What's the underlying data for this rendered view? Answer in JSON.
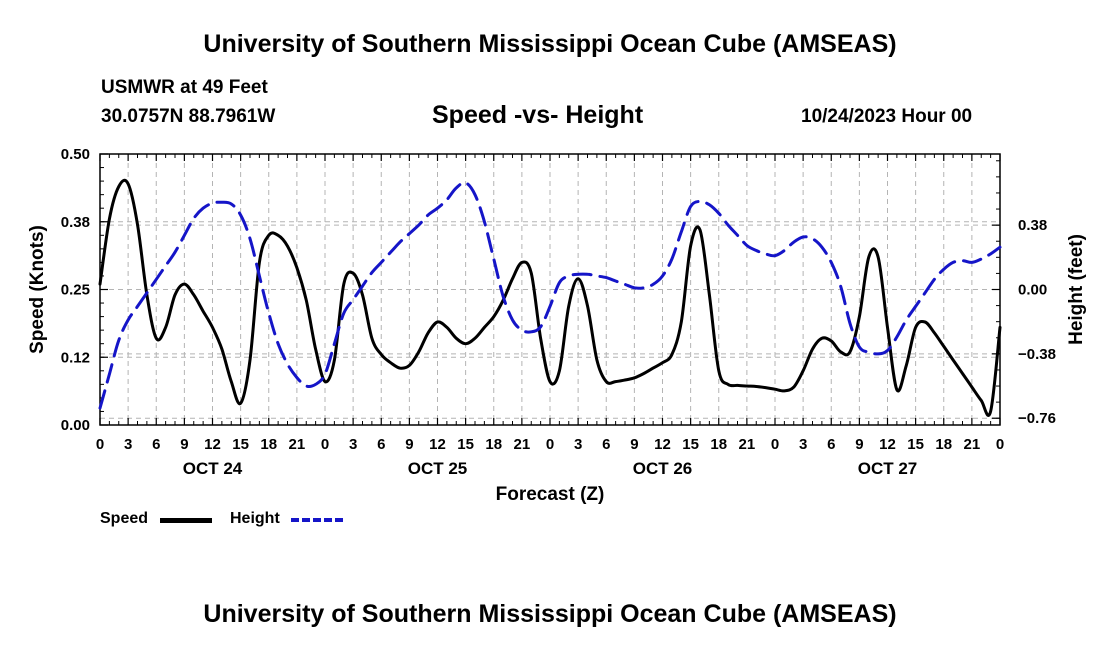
{
  "titles": {
    "top": "University of Southern Mississippi Ocean Cube (AMSEAS)",
    "bottom": "University of Southern Mississippi Ocean Cube (AMSEAS)"
  },
  "station": {
    "name": "USMWR at 49 Feet",
    "coords": "30.0757N  88.7961W"
  },
  "subtitle": "Speed -vs- Height",
  "datetime": "10/24/2023 Hour 00",
  "legend": {
    "speed": "Speed",
    "height": "Height"
  },
  "colors": {
    "speed": "#000000",
    "height": "#1515c8",
    "grid": "#b4b4b4"
  },
  "chart_data": {
    "type": "line",
    "xlabel": "Forecast (Z)",
    "ylabel_left": "Speed (Knots)",
    "ylabel_right": "Height (feet)",
    "x_range": [
      0,
      96
    ],
    "x_tick_hours": [
      0,
      3,
      6,
      9,
      12,
      15,
      18,
      21,
      24,
      27,
      30,
      33,
      36,
      39,
      42,
      45,
      48,
      51,
      54,
      57,
      60,
      63,
      66,
      69,
      72,
      75,
      78,
      81,
      84,
      87,
      90,
      93,
      96
    ],
    "x_tick_labels": [
      "0",
      "3",
      "6",
      "9",
      "12",
      "15",
      "18",
      "21",
      "0",
      "3",
      "6",
      "9",
      "12",
      "15",
      "18",
      "21",
      "0",
      "3",
      "6",
      "9",
      "12",
      "15",
      "18",
      "21",
      "0",
      "3",
      "6",
      "9",
      "12",
      "15",
      "18",
      "21",
      "0"
    ],
    "day_labels": [
      {
        "hour": 12,
        "label": "OCT 24"
      },
      {
        "hour": 36,
        "label": "OCT 25"
      },
      {
        "hour": 60,
        "label": "OCT 26"
      },
      {
        "hour": 84,
        "label": "OCT 27"
      }
    ],
    "ylim_left": [
      0,
      0.5
    ],
    "y_ticks_left": [
      "0.00",
      "0.12",
      "0.25",
      "0.38",
      "0.50"
    ],
    "y_tick_values_left": [
      0,
      0.125,
      0.25,
      0.375,
      0.5
    ],
    "ylim_right": [
      -0.8,
      0.8
    ],
    "y_ticks_right": [
      "−0.76",
      "−0.38",
      "0.00",
      "0.38"
    ],
    "y_tick_values_right": [
      -0.76,
      -0.38,
      0.0,
      0.38
    ],
    "series": [
      {
        "name": "Speed",
        "axis": "left",
        "style": "solid",
        "points": [
          [
            0,
            0.26
          ],
          [
            1,
            0.38
          ],
          [
            2,
            0.44
          ],
          [
            3,
            0.445
          ],
          [
            4,
            0.37
          ],
          [
            5,
            0.24
          ],
          [
            6,
            0.16
          ],
          [
            7,
            0.18
          ],
          [
            8,
            0.24
          ],
          [
            9,
            0.26
          ],
          [
            10,
            0.24
          ],
          [
            11,
            0.21
          ],
          [
            12,
            0.18
          ],
          [
            13,
            0.14
          ],
          [
            14,
            0.08
          ],
          [
            15,
            0.04
          ],
          [
            16,
            0.12
          ],
          [
            17,
            0.3
          ],
          [
            18,
            0.35
          ],
          [
            19,
            0.35
          ],
          [
            20,
            0.33
          ],
          [
            21,
            0.29
          ],
          [
            22,
            0.23
          ],
          [
            23,
            0.14
          ],
          [
            24,
            0.08
          ],
          [
            25,
            0.12
          ],
          [
            26,
            0.26
          ],
          [
            27,
            0.28
          ],
          [
            28,
            0.24
          ],
          [
            29,
            0.16
          ],
          [
            30,
            0.13
          ],
          [
            31,
            0.115
          ],
          [
            32,
            0.105
          ],
          [
            33,
            0.11
          ],
          [
            34,
            0.135
          ],
          [
            35,
            0.17
          ],
          [
            36,
            0.19
          ],
          [
            37,
            0.18
          ],
          [
            38,
            0.16
          ],
          [
            39,
            0.15
          ],
          [
            40,
            0.16
          ],
          [
            41,
            0.18
          ],
          [
            42,
            0.2
          ],
          [
            43,
            0.23
          ],
          [
            44,
            0.27
          ],
          [
            45,
            0.3
          ],
          [
            46,
            0.28
          ],
          [
            47,
            0.16
          ],
          [
            48,
            0.08
          ],
          [
            49,
            0.1
          ],
          [
            50,
            0.22
          ],
          [
            51,
            0.27
          ],
          [
            52,
            0.22
          ],
          [
            53,
            0.12
          ],
          [
            54,
            0.08
          ],
          [
            55,
            0.08
          ],
          [
            56,
            0.083
          ],
          [
            57,
            0.087
          ],
          [
            58,
            0.095
          ],
          [
            59,
            0.105
          ],
          [
            60,
            0.115
          ],
          [
            61,
            0.13
          ],
          [
            62,
            0.19
          ],
          [
            63,
            0.33
          ],
          [
            64,
            0.36
          ],
          [
            65,
            0.24
          ],
          [
            66,
            0.1
          ],
          [
            67,
            0.075
          ],
          [
            68,
            0.073
          ],
          [
            69,
            0.072
          ],
          [
            70,
            0.071
          ],
          [
            71,
            0.069
          ],
          [
            72,
            0.066
          ],
          [
            73,
            0.063
          ],
          [
            74,
            0.07
          ],
          [
            75,
            0.1
          ],
          [
            76,
            0.14
          ],
          [
            77,
            0.16
          ],
          [
            78,
            0.155
          ],
          [
            79,
            0.135
          ],
          [
            80,
            0.135
          ],
          [
            81,
            0.2
          ],
          [
            82,
            0.31
          ],
          [
            83,
            0.31
          ],
          [
            84,
            0.18
          ],
          [
            85,
            0.065
          ],
          [
            86,
            0.11
          ],
          [
            87,
            0.18
          ],
          [
            88,
            0.19
          ],
          [
            89,
            0.17
          ],
          [
            90,
            0.145
          ],
          [
            91,
            0.12
          ],
          [
            92,
            0.095
          ],
          [
            93,
            0.07
          ],
          [
            94,
            0.045
          ],
          [
            95,
            0.025
          ],
          [
            96,
            0.18
          ]
        ]
      },
      {
        "name": "Height",
        "axis": "right",
        "style": "dashed",
        "points": [
          [
            0,
            -0.7
          ],
          [
            1,
            -0.5
          ],
          [
            2,
            -0.3
          ],
          [
            3,
            -0.18
          ],
          [
            4,
            -0.1
          ],
          [
            5,
            -0.02
          ],
          [
            6,
            0.06
          ],
          [
            7,
            0.14
          ],
          [
            8,
            0.22
          ],
          [
            9,
            0.32
          ],
          [
            10,
            0.42
          ],
          [
            11,
            0.48
          ],
          [
            12,
            0.51
          ],
          [
            13,
            0.515
          ],
          [
            14,
            0.505
          ],
          [
            15,
            0.44
          ],
          [
            16,
            0.3
          ],
          [
            17,
            0.08
          ],
          [
            18,
            -0.14
          ],
          [
            19,
            -0.32
          ],
          [
            20,
            -0.44
          ],
          [
            21,
            -0.52
          ],
          [
            22,
            -0.57
          ],
          [
            23,
            -0.56
          ],
          [
            24,
            -0.5
          ],
          [
            25,
            -0.32
          ],
          [
            26,
            -0.14
          ],
          [
            27,
            -0.06
          ],
          [
            28,
            0.02
          ],
          [
            29,
            0.1
          ],
          [
            30,
            0.16
          ],
          [
            31,
            0.22
          ],
          [
            32,
            0.28
          ],
          [
            33,
            0.33
          ],
          [
            34,
            0.38
          ],
          [
            35,
            0.44
          ],
          [
            36,
            0.48
          ],
          [
            37,
            0.53
          ],
          [
            38,
            0.6
          ],
          [
            39,
            0.63
          ],
          [
            40,
            0.56
          ],
          [
            41,
            0.4
          ],
          [
            42,
            0.18
          ],
          [
            43,
            -0.04
          ],
          [
            44,
            -0.18
          ],
          [
            45,
            -0.24
          ],
          [
            46,
            -0.25
          ],
          [
            47,
            -0.22
          ],
          [
            48,
            -0.1
          ],
          [
            49,
            0.04
          ],
          [
            50,
            0.08
          ],
          [
            51,
            0.09
          ],
          [
            52,
            0.09
          ],
          [
            53,
            0.08
          ],
          [
            54,
            0.07
          ],
          [
            55,
            0.05
          ],
          [
            56,
            0.03
          ],
          [
            57,
            0.01
          ],
          [
            58,
            0.01
          ],
          [
            59,
            0.03
          ],
          [
            60,
            0.08
          ],
          [
            61,
            0.18
          ],
          [
            62,
            0.34
          ],
          [
            63,
            0.49
          ],
          [
            64,
            0.52
          ],
          [
            65,
            0.5
          ],
          [
            66,
            0.45
          ],
          [
            67,
            0.38
          ],
          [
            68,
            0.32
          ],
          [
            69,
            0.26
          ],
          [
            70,
            0.23
          ],
          [
            71,
            0.21
          ],
          [
            72,
            0.2
          ],
          [
            73,
            0.23
          ],
          [
            74,
            0.28
          ],
          [
            75,
            0.31
          ],
          [
            76,
            0.3
          ],
          [
            77,
            0.25
          ],
          [
            78,
            0.16
          ],
          [
            79,
            0.02
          ],
          [
            80,
            -0.2
          ],
          [
            81,
            -0.34
          ],
          [
            82,
            -0.37
          ],
          [
            83,
            -0.38
          ],
          [
            84,
            -0.36
          ],
          [
            85,
            -0.28
          ],
          [
            86,
            -0.18
          ],
          [
            87,
            -0.1
          ],
          [
            88,
            -0.02
          ],
          [
            89,
            0.06
          ],
          [
            90,
            0.12
          ],
          [
            91,
            0.16
          ],
          [
            92,
            0.17
          ],
          [
            93,
            0.16
          ],
          [
            94,
            0.18
          ],
          [
            95,
            0.21
          ],
          [
            96,
            0.25
          ]
        ]
      }
    ]
  }
}
